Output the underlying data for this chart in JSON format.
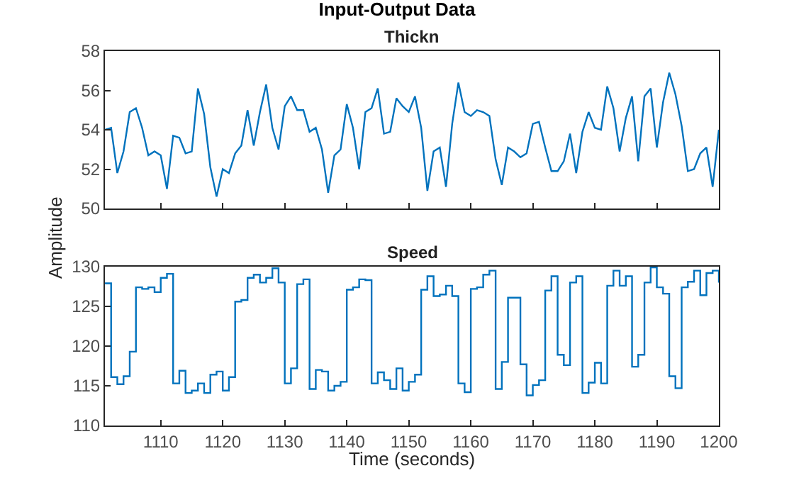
{
  "chart_data": [
    {
      "type": "line",
      "title": "Input-Output Data",
      "tick_labels": "y",
      "x": [
        1101,
        1102,
        1103,
        1104,
        1105,
        1106,
        1107,
        1108,
        1109,
        1110,
        1111,
        1112,
        1113,
        1114,
        1115,
        1116,
        1117,
        1118,
        1119,
        1120,
        1121,
        1122,
        1123,
        1124,
        1125,
        1126,
        1127,
        1128,
        1129,
        1130,
        1131,
        1132,
        1133,
        1134,
        1135,
        1136,
        1137,
        1138,
        1139,
        1140,
        1141,
        1142,
        1143,
        1144,
        1145,
        1146,
        1147,
        1148,
        1149,
        1150,
        1151,
        1152,
        1153,
        1154,
        1155,
        1156,
        1157,
        1158,
        1159,
        1160,
        1161,
        1162,
        1163,
        1164,
        1165,
        1166,
        1167,
        1168,
        1169,
        1170,
        1171,
        1172,
        1173,
        1174,
        1175,
        1176,
        1177,
        1178,
        1179,
        1180,
        1181,
        1182,
        1183,
        1184,
        1185,
        1186,
        1187,
        1188,
        1189,
        1190,
        1191,
        1192,
        1193,
        1194,
        1195,
        1196,
        1197,
        1198,
        1199,
        1200
      ],
      "series": [
        {
          "name": "Thickn",
          "color": "#0072bd",
          "values": [
            54.0,
            54.1,
            51.8,
            52.9,
            54.9,
            55.1,
            54.1,
            52.7,
            52.9,
            52.7,
            51.0,
            53.7,
            53.6,
            52.8,
            52.9,
            56.1,
            54.8,
            52.1,
            50.6,
            52.0,
            51.8,
            52.8,
            53.2,
            55.0,
            53.2,
            54.9,
            56.3,
            54.1,
            53.0,
            55.2,
            55.7,
            55.0,
            55.0,
            53.9,
            54.1,
            53.0,
            50.8,
            52.7,
            53.0,
            55.3,
            54.1,
            52.0,
            54.9,
            55.1,
            56.1,
            53.8,
            53.9,
            55.6,
            55.2,
            54.9,
            55.7,
            54.1,
            50.9,
            52.9,
            53.1,
            51.1,
            54.3,
            56.4,
            54.9,
            54.7,
            55.0,
            54.9,
            54.7,
            52.5,
            51.2,
            53.1,
            52.9,
            52.6,
            52.8,
            54.3,
            54.4,
            53.1,
            51.9,
            51.9,
            52.4,
            53.8,
            51.8,
            53.9,
            54.9,
            54.1,
            54.0,
            56.2,
            55.1,
            52.9,
            54.6,
            55.7,
            52.4,
            55.7,
            56.1,
            53.1,
            55.4,
            56.9,
            55.8,
            54.2,
            51.9,
            52.0,
            52.8,
            53.1,
            51.1,
            54.0
          ]
        }
      ],
      "xlim": [
        1101,
        1200
      ],
      "xticks": [
        1110,
        1120,
        1130,
        1140,
        1150,
        1160,
        1170,
        1180,
        1190,
        1200
      ],
      "ylim": [
        50,
        58
      ],
      "yticks": [
        50,
        52,
        54,
        56,
        58
      ]
    },
    {
      "type": "step",
      "xlabel": "Time (seconds)",
      "ylabel": "Amplitude",
      "x": [
        1101,
        1102,
        1103,
        1104,
        1105,
        1106,
        1107,
        1108,
        1109,
        1110,
        1111,
        1112,
        1113,
        1114,
        1115,
        1116,
        1117,
        1118,
        1119,
        1120,
        1121,
        1122,
        1123,
        1124,
        1125,
        1126,
        1127,
        1128,
        1129,
        1130,
        1131,
        1132,
        1133,
        1134,
        1135,
        1136,
        1137,
        1138,
        1139,
        1140,
        1141,
        1142,
        1143,
        1144,
        1145,
        1146,
        1147,
        1148,
        1149,
        1150,
        1151,
        1152,
        1153,
        1154,
        1155,
        1156,
        1157,
        1158,
        1159,
        1160,
        1161,
        1162,
        1163,
        1164,
        1165,
        1166,
        1167,
        1168,
        1169,
        1170,
        1171,
        1172,
        1173,
        1174,
        1175,
        1176,
        1177,
        1178,
        1179,
        1180,
        1181,
        1182,
        1183,
        1184,
        1185,
        1186,
        1187,
        1188,
        1189,
        1190,
        1191,
        1192,
        1193,
        1194,
        1195,
        1196,
        1197,
        1198,
        1199,
        1200
      ],
      "series": [
        {
          "name": "Speed",
          "color": "#0072bd",
          "values": [
            127.9,
            116.1,
            115.2,
            116.2,
            119.3,
            127.4,
            127.2,
            127.4,
            126.8,
            128.6,
            129.1,
            115.3,
            116.9,
            114.1,
            114.4,
            115.3,
            114.1,
            116.4,
            116.8,
            114.4,
            116.1,
            125.6,
            125.8,
            128.6,
            129.0,
            128.0,
            128.6,
            129.8,
            128.0,
            115.3,
            117.2,
            127.8,
            128.4,
            114.6,
            117.0,
            116.8,
            114.4,
            115.0,
            115.5,
            127.1,
            127.4,
            128.4,
            128.3,
            115.3,
            116.7,
            115.7,
            114.6,
            117.2,
            114.4,
            115.5,
            116.4,
            127.1,
            128.8,
            126.3,
            126.5,
            127.6,
            126.3,
            115.3,
            114.2,
            127.2,
            127.4,
            129.0,
            129.5,
            114.6,
            118.0,
            126.1,
            126.1,
            117.7,
            113.8,
            115.1,
            115.7,
            127.0,
            128.8,
            118.9,
            117.6,
            128.0,
            128.8,
            114.1,
            115.4,
            117.9,
            115.3,
            127.6,
            129.5,
            127.6,
            128.8,
            117.4,
            118.9,
            128.0,
            129.9,
            127.4,
            126.6,
            116.2,
            114.7,
            127.4,
            128.1,
            129.5,
            126.4,
            129.2,
            129.5,
            128.0
          ]
        }
      ],
      "xlim": [
        1101,
        1200
      ],
      "xticks": [
        1110,
        1120,
        1130,
        1140,
        1150,
        1160,
        1170,
        1180,
        1190,
        1200
      ],
      "ylim": [
        110,
        130
      ],
      "yticks": [
        110,
        115,
        120,
        125,
        130
      ]
    }
  ]
}
